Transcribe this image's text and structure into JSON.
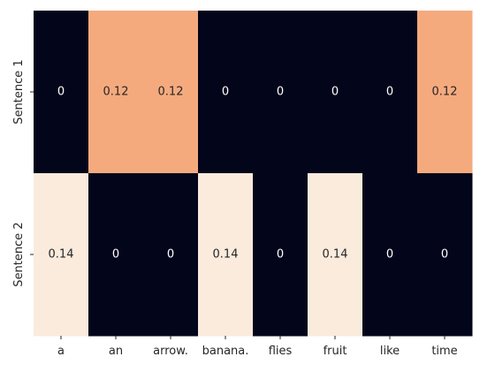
{
  "chart_data": {
    "type": "heatmap",
    "columns": [
      "a",
      "an",
      "arrow.",
      "banana.",
      "flies",
      "fruit",
      "like",
      "time"
    ],
    "rows": [
      "Sentence 1",
      "Sentence 2"
    ],
    "values": [
      [
        0,
        0.12,
        0.12,
        0,
        0,
        0,
        0,
        0.12
      ],
      [
        0.14,
        0,
        0,
        0.14,
        0,
        0.14,
        0,
        0
      ]
    ],
    "annotations": [
      [
        "0",
        "0.12",
        "0.12",
        "0",
        "0",
        "0",
        "0",
        "0.12"
      ],
      [
        "0.14",
        "0",
        "0",
        "0.14",
        "0",
        "0.14",
        "0",
        "0"
      ]
    ],
    "colorbar": false,
    "colormap": "rocket",
    "vmin": 0,
    "vmax": 0.14
  }
}
